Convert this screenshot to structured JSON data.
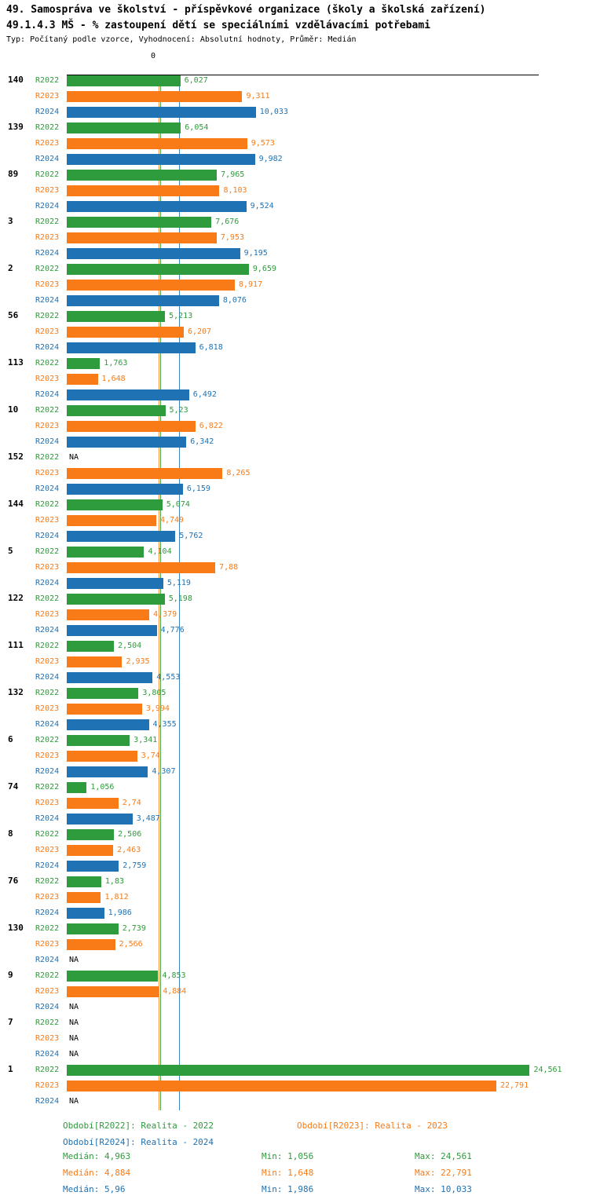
{
  "title": "49. Samospráva ve školství - příspěvkové organizace (školy a školská zařízení)",
  "subtitle": "49.1.4.3 MŠ - % zastoupení dětí se speciálními vzdělávacími potřebami",
  "meta": "Typ: Počítaný podle vzorce, Vyhodnocení: Absolutní hodnoty, Průměr: Medián",
  "axis": {
    "zero_label": "0"
  },
  "colors": {
    "r2022": "#2e9b3c",
    "r2023": "#f87b17",
    "r2024": "#1f72b4",
    "axis": "#000000"
  },
  "chart_data": {
    "type": "bar",
    "orientation": "horizontal",
    "value_unit": "%",
    "series_names": [
      "R2022",
      "R2023",
      "R2024"
    ],
    "na_label": "NA",
    "xlim": [
      0,
      25
    ],
    "grid": false,
    "legend_position": "bottom",
    "medians": {
      "R2022": 4.963,
      "R2023": 4.884,
      "R2024": 5.96
    },
    "groups": [
      {
        "label": "140",
        "values": [
          6.027,
          9.311,
          10.033
        ],
        "display": [
          "6,027",
          "9,311",
          "10,033"
        ]
      },
      {
        "label": "139",
        "values": [
          6.054,
          9.573,
          9.982
        ],
        "display": [
          "6,054",
          "9,573",
          "9,982"
        ]
      },
      {
        "label": "89",
        "values": [
          7.965,
          8.103,
          9.524
        ],
        "display": [
          "7,965",
          "8,103",
          "9,524"
        ]
      },
      {
        "label": "3",
        "values": [
          7.676,
          7.953,
          9.195
        ],
        "display": [
          "7,676",
          "7,953",
          "9,195"
        ]
      },
      {
        "label": "2",
        "values": [
          9.659,
          8.917,
          8.076
        ],
        "display": [
          "9,659",
          "8,917",
          "8,076"
        ]
      },
      {
        "label": "56",
        "values": [
          5.213,
          6.207,
          6.818
        ],
        "display": [
          "5,213",
          "6,207",
          "6,818"
        ]
      },
      {
        "label": "113",
        "values": [
          1.763,
          1.648,
          6.492
        ],
        "display": [
          "1,763",
          "1,648",
          "6,492"
        ]
      },
      {
        "label": "10",
        "values": [
          5.23,
          6.822,
          6.342
        ],
        "display": [
          "5,23",
          "6,822",
          "6,342"
        ]
      },
      {
        "label": "152",
        "values": [
          null,
          8.265,
          6.159
        ],
        "display": [
          "NA",
          "8,265",
          "6,159"
        ]
      },
      {
        "label": "144",
        "values": [
          5.074,
          4.749,
          5.762
        ],
        "display": [
          "5,074",
          "4,749",
          "5,762"
        ]
      },
      {
        "label": "5",
        "values": [
          4.104,
          7.88,
          5.119
        ],
        "display": [
          "4,104",
          "7,88",
          "5,119"
        ]
      },
      {
        "label": "122",
        "values": [
          5.198,
          4.379,
          4.776
        ],
        "display": [
          "5,198",
          "4,379",
          "4,776"
        ]
      },
      {
        "label": "111",
        "values": [
          2.504,
          2.935,
          4.553
        ],
        "display": [
          "2,504",
          "2,935",
          "4,553"
        ]
      },
      {
        "label": "132",
        "values": [
          3.805,
          3.994,
          4.355
        ],
        "display": [
          "3,805",
          "3,994",
          "4,355"
        ]
      },
      {
        "label": "6",
        "values": [
          3.341,
          3.74,
          4.307
        ],
        "display": [
          "3,341",
          "3,74",
          "4,307"
        ]
      },
      {
        "label": "74",
        "values": [
          1.056,
          2.74,
          3.487
        ],
        "display": [
          "1,056",
          "2,74",
          "3,487"
        ]
      },
      {
        "label": "8",
        "values": [
          2.506,
          2.463,
          2.759
        ],
        "display": [
          "2,506",
          "2,463",
          "2,759"
        ]
      },
      {
        "label": "76",
        "values": [
          1.83,
          1.812,
          1.986
        ],
        "display": [
          "1,83",
          "1,812",
          "1,986"
        ]
      },
      {
        "label": "130",
        "values": [
          2.739,
          2.566,
          null
        ],
        "display": [
          "2,739",
          "2,566",
          "NA"
        ]
      },
      {
        "label": "9",
        "values": [
          4.853,
          4.884,
          null
        ],
        "display": [
          "4,853",
          "4,884",
          "NA"
        ]
      },
      {
        "label": "7",
        "values": [
          null,
          null,
          null
        ],
        "display": [
          "NA",
          "NA",
          "NA"
        ]
      },
      {
        "label": "1",
        "values": [
          24.561,
          22.791,
          null
        ],
        "display": [
          "24,561",
          "22,791",
          "NA"
        ]
      }
    ]
  },
  "legend": {
    "items": [
      {
        "series": "R2022",
        "text": "Období[R2022]: Realita - 2022"
      },
      {
        "series": "R2023",
        "text": "Období[R2023]: Realita - 2023"
      },
      {
        "series": "R2024",
        "text": "Období[R2024]: Realita - 2024"
      }
    ]
  },
  "stats": {
    "rows": [
      {
        "series": "R2022",
        "median": "Medián: 4,963",
        "min": "Min: 1,056",
        "max": "Max: 24,561"
      },
      {
        "series": "R2023",
        "median": "Medián: 4,884",
        "min": "Min: 1,648",
        "max": "Max: 22,791"
      },
      {
        "series": "R2024",
        "median": "Medián: 5,96",
        "min": "Min: 1,986",
        "max": "Max: 10,033"
      }
    ]
  }
}
